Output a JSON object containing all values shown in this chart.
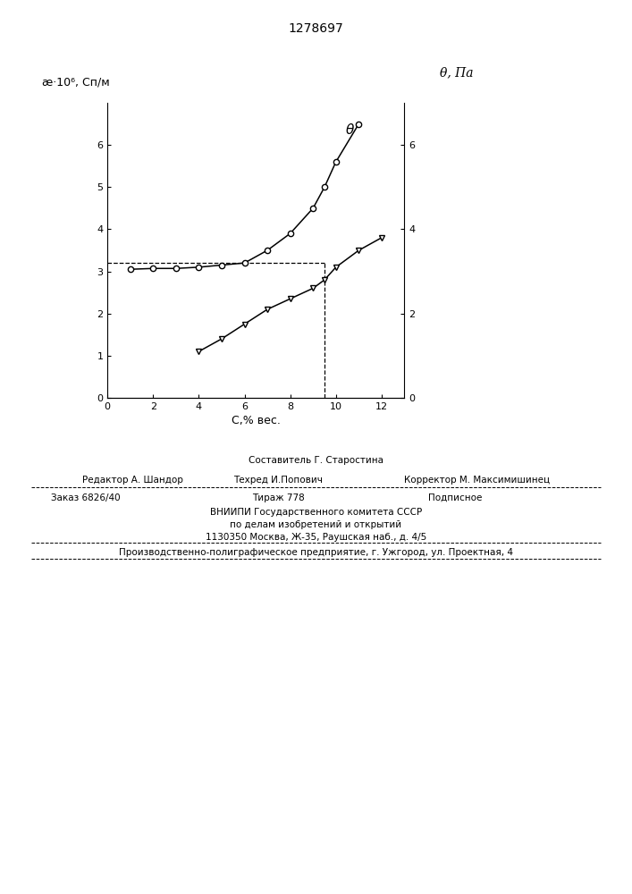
{
  "title": "1278697",
  "title_fontsize": 10,
  "left_ylabel": "æ·10⁶, Сп/м",
  "right_ylabel": "θ, Па",
  "xlabel": "С,% вес.",
  "left_ylim": [
    0,
    7
  ],
  "right_ylim": [
    0,
    7
  ],
  "xlim": [
    0,
    13
  ],
  "left_yticks": [
    0,
    1,
    2,
    3,
    4,
    5,
    6
  ],
  "right_yticks": [
    0,
    2,
    4,
    6
  ],
  "xticks": [
    0,
    2,
    4,
    6,
    8,
    10,
    12
  ],
  "curve1_x": [
    1,
    2,
    3,
    4,
    5,
    6,
    7,
    8,
    9,
    9.5,
    10,
    11
  ],
  "curve1_y": [
    3.05,
    3.07,
    3.07,
    3.1,
    3.15,
    3.2,
    3.5,
    3.9,
    4.5,
    5.0,
    5.6,
    6.5
  ],
  "curve2_x": [
    4,
    5,
    6,
    7,
    8,
    9,
    9.5,
    10,
    11,
    12
  ],
  "curve2_y": [
    1.1,
    1.4,
    1.75,
    2.1,
    2.35,
    2.6,
    2.8,
    3.1,
    3.5,
    3.8
  ],
  "dashed_vline_x": 9.5,
  "dashed_hline_y": 3.2,
  "bg_color": "#ffffff",
  "line_color": "#000000",
  "text_line1_left": "Редактор А. Шандор",
  "text_line1_center1": "Составитель Г. Старостина",
  "text_line1_center2": "Техред И.Попович",
  "text_line1_right": "Корректор М. Максимишинец",
  "text_zakaz": "Заказ 6826/40",
  "text_tirazh": "Тираж 778",
  "text_podpisnoe": "Подписное",
  "text_vniiipi": "ВНИИПИ Государственного комитета СССР",
  "text_po_delam": "по делам изобретений и открытий",
  "text_address": "1130350 Москва, Ж-35, Раушская наб., д. 4/5",
  "text_proizv": "Производственно-полиграфическое предприятие, г. Ужгород, ул. Проектная, 4"
}
